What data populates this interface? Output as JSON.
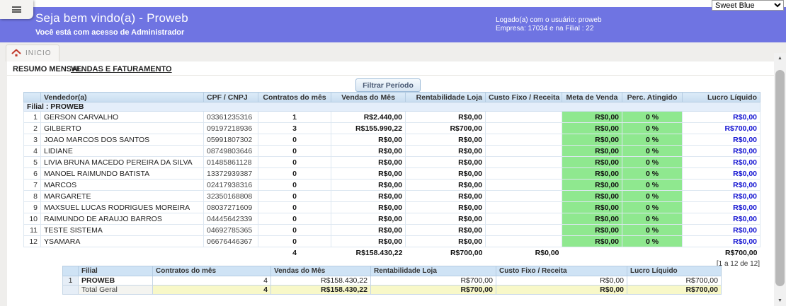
{
  "theme_select": {
    "value": "Sweet Blue"
  },
  "header": {
    "title": "Seja bem vindo(a) - Proweb",
    "subtitle": "Você está com acesso de Administrador",
    "logged_user_line": "Logado(a) com o usuário: proweb",
    "company_line": "Empresa: 17034 e na Filial : 22"
  },
  "nav": {
    "home_tab_label": "INICIO"
  },
  "tabs": {
    "resumo_mensal": "RESUMO MENSAL",
    "vendas_faturamento": "VENDAS E FATURAMENTO"
  },
  "filter_button_label": "Filtrar Período",
  "main_table": {
    "group_label": "Filial : PROWEB",
    "columns": [
      "Vendedor(a)",
      "CPF / CNPJ",
      "Contratos do mês",
      "Vendas do Mês",
      "Rentabilidade Loja",
      "Custo Fixo / Receita",
      "Meta de Venda",
      "Perc. Atingido",
      "Lucro Líquido"
    ],
    "rows": [
      {
        "idx": "1",
        "vendedor": "GERSON CARVALHO",
        "cpf": "03361235316",
        "contratos": "1",
        "vendas": "R$2.440,00",
        "rentabilidade": "R$0,00",
        "custo": "",
        "meta": "R$0,00",
        "perc": "0 %",
        "lucro": "R$0,00"
      },
      {
        "idx": "2",
        "vendedor": "GILBERTO",
        "cpf": "09197218936",
        "contratos": "3",
        "vendas": "R$155.990,22",
        "rentabilidade": "R$700,00",
        "custo": "",
        "meta": "R$0,00",
        "perc": "0 %",
        "lucro": "R$700,00"
      },
      {
        "idx": "3",
        "vendedor": "JOAO MARCOS DOS SANTOS",
        "cpf": "05991807302",
        "contratos": "0",
        "vendas": "R$0,00",
        "rentabilidade": "R$0,00",
        "custo": "",
        "meta": "R$0,00",
        "perc": "0 %",
        "lucro": "R$0,00"
      },
      {
        "idx": "4",
        "vendedor": "LIDIANE",
        "cpf": "08749803646",
        "contratos": "0",
        "vendas": "R$0,00",
        "rentabilidade": "R$0,00",
        "custo": "",
        "meta": "R$0,00",
        "perc": "0 %",
        "lucro": "R$0,00"
      },
      {
        "idx": "5",
        "vendedor": "LIVIA BRUNA MACEDO PEREIRA DA SILVA",
        "cpf": "01485861128",
        "contratos": "0",
        "vendas": "R$0,00",
        "rentabilidade": "R$0,00",
        "custo": "",
        "meta": "R$0,00",
        "perc": "0 %",
        "lucro": "R$0,00"
      },
      {
        "idx": "6",
        "vendedor": "MANOEL RAIMUNDO BATISTA",
        "cpf": "13372939387",
        "contratos": "0",
        "vendas": "R$0,00",
        "rentabilidade": "R$0,00",
        "custo": "",
        "meta": "R$0,00",
        "perc": "0 %",
        "lucro": "R$0,00"
      },
      {
        "idx": "7",
        "vendedor": "MARCOS",
        "cpf": "02417938316",
        "contratos": "0",
        "vendas": "R$0,00",
        "rentabilidade": "R$0,00",
        "custo": "",
        "meta": "R$0,00",
        "perc": "0 %",
        "lucro": "R$0,00"
      },
      {
        "idx": "8",
        "vendedor": "MARGARETE",
        "cpf": "32350168808",
        "contratos": "0",
        "vendas": "R$0,00",
        "rentabilidade": "R$0,00",
        "custo": "",
        "meta": "R$0,00",
        "perc": "0 %",
        "lucro": "R$0,00"
      },
      {
        "idx": "9",
        "vendedor": "MAXSUEL LUCAS RODRIGUES MOREIRA",
        "cpf": "08037271609",
        "contratos": "0",
        "vendas": "R$0,00",
        "rentabilidade": "R$0,00",
        "custo": "",
        "meta": "R$0,00",
        "perc": "0 %",
        "lucro": "R$0,00"
      },
      {
        "idx": "10",
        "vendedor": "RAIMUNDO DE ARAUJO BARROS",
        "cpf": "04445642339",
        "contratos": "0",
        "vendas": "R$0,00",
        "rentabilidade": "R$0,00",
        "custo": "",
        "meta": "R$0,00",
        "perc": "0 %",
        "lucro": "R$0,00"
      },
      {
        "idx": "11",
        "vendedor": "TESTE SISTEMA",
        "cpf": "04692785365",
        "contratos": "0",
        "vendas": "R$0,00",
        "rentabilidade": "R$0,00",
        "custo": "",
        "meta": "R$0,00",
        "perc": "0 %",
        "lucro": "R$0,00"
      },
      {
        "idx": "12",
        "vendedor": "YSAMARA",
        "cpf": "06676446367",
        "contratos": "0",
        "vendas": "R$0,00",
        "rentabilidade": "R$0,00",
        "custo": "",
        "meta": "R$0,00",
        "perc": "0 %",
        "lucro": "R$0,00"
      }
    ],
    "totals": {
      "contratos": "4",
      "vendas": "R$158.430,22",
      "rentabilidade": "R$700,00",
      "custo": "R$0,00",
      "meta": "",
      "perc": "",
      "lucro": "R$700,00"
    },
    "pagination": "[1 a 12 de 12]"
  },
  "summary_table": {
    "columns": [
      "Filial",
      "Contratos do mês",
      "Vendas do Mês",
      "Rentabilidade Loja",
      "Custo Fixo / Receita",
      "Lucro Líquido"
    ],
    "rows": [
      {
        "idx": "1",
        "filial": "PROWEB",
        "contratos": "4",
        "vendas": "R$158.430,22",
        "rentabilidade": "R$700,00",
        "custo": "R$0,00",
        "lucro": "R$700,00"
      }
    ],
    "total": {
      "label": "Total Geral",
      "contratos": "4",
      "vendas": "R$158.430,22",
      "rentabilidade": "R$700,00",
      "custo": "R$0,00",
      "lucro": "R$700,00"
    }
  },
  "colors": {
    "banner": "#6f74e2",
    "table_header": "#cfe3f5",
    "goal_green": "#8fe88f",
    "profit_blue": "#1414d2",
    "total_yellow": "#f8f8c8"
  }
}
